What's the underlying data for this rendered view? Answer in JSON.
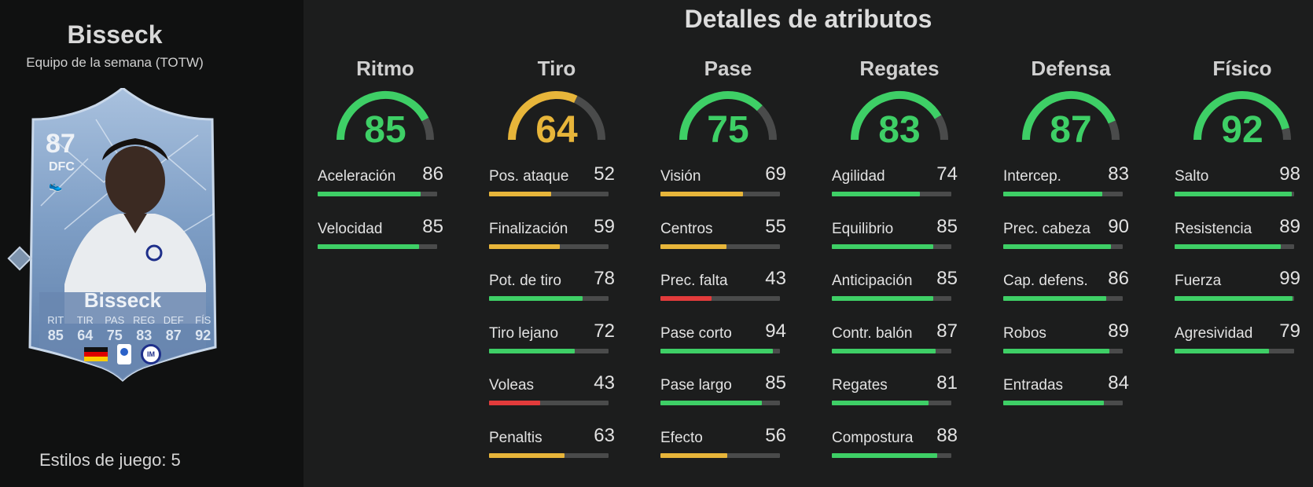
{
  "player": {
    "name": "Bisseck",
    "subtitle": "Equipo de la semana (TOTW)",
    "playstyles": "Estilos de juego: 5"
  },
  "card": {
    "rating": "87",
    "position": "DFC",
    "name": "Bisseck",
    "stat_labels": [
      "RIT",
      "TIR",
      "PAS",
      "REG",
      "DEF",
      "FÍS"
    ],
    "stat_values": [
      "85",
      "64",
      "75",
      "83",
      "87",
      "92"
    ],
    "nation_icon": "germany-flag-icon",
    "league_icon": "serie-a-icon",
    "club_icon": "inter-icon"
  },
  "section_title": "Detalles de atributos",
  "colors": {
    "green": "#3ecf66",
    "yellow": "#e7b53a",
    "red": "#e23b3b",
    "track": "#4a4b4b"
  },
  "categories": [
    {
      "name": "Ritmo",
      "value": 85,
      "color": "green",
      "subs": [
        {
          "label": "Aceleración",
          "value": 86
        },
        {
          "label": "Velocidad",
          "value": 85
        }
      ]
    },
    {
      "name": "Tiro",
      "value": 64,
      "color": "yellow",
      "subs": [
        {
          "label": "Pos. ataque",
          "value": 52
        },
        {
          "label": "Finalización",
          "value": 59
        },
        {
          "label": "Pot. de tiro",
          "value": 78
        },
        {
          "label": "Tiro lejano",
          "value": 72
        },
        {
          "label": "Voleas",
          "value": 43
        },
        {
          "label": "Penaltis",
          "value": 63
        }
      ]
    },
    {
      "name": "Pase",
      "value": 75,
      "color": "green",
      "subs": [
        {
          "label": "Visión",
          "value": 69
        },
        {
          "label": "Centros",
          "value": 55
        },
        {
          "label": "Prec. falta",
          "value": 43
        },
        {
          "label": "Pase corto",
          "value": 94
        },
        {
          "label": "Pase largo",
          "value": 85
        },
        {
          "label": "Efecto",
          "value": 56
        }
      ]
    },
    {
      "name": "Regates",
      "value": 83,
      "color": "green",
      "subs": [
        {
          "label": "Agilidad",
          "value": 74
        },
        {
          "label": "Equilibrio",
          "value": 85
        },
        {
          "label": "Anticipación",
          "value": 85
        },
        {
          "label": "Contr. balón",
          "value": 87
        },
        {
          "label": "Regates",
          "value": 81
        },
        {
          "label": "Compostura",
          "value": 88
        }
      ]
    },
    {
      "name": "Defensa",
      "value": 87,
      "color": "green",
      "subs": [
        {
          "label": "Intercep.",
          "value": 83
        },
        {
          "label": "Prec. cabeza",
          "value": 90
        },
        {
          "label": "Cap. defens.",
          "value": 86
        },
        {
          "label": "Robos",
          "value": 89
        },
        {
          "label": "Entradas",
          "value": 84
        }
      ]
    },
    {
      "name": "Físico",
      "value": 92,
      "color": "green",
      "subs": [
        {
          "label": "Salto",
          "value": 98
        },
        {
          "label": "Resistencia",
          "value": 89
        },
        {
          "label": "Fuerza",
          "value": 99
        },
        {
          "label": "Agresividad",
          "value": 79
        }
      ]
    }
  ]
}
